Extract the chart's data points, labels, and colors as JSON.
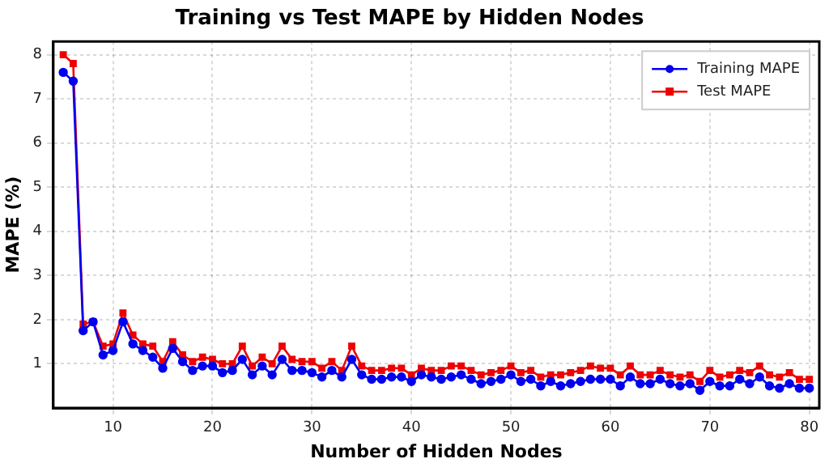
{
  "chart_data": {
    "type": "line",
    "title": "Training vs Test MAPE by Hidden Nodes",
    "xlabel": "Number of Hidden Nodes",
    "ylabel": "MAPE (%)",
    "x": [
      5,
      6,
      7,
      8,
      9,
      10,
      11,
      12,
      13,
      14,
      15,
      16,
      17,
      18,
      19,
      20,
      21,
      22,
      23,
      24,
      25,
      26,
      27,
      28,
      29,
      30,
      31,
      32,
      33,
      34,
      35,
      36,
      37,
      38,
      39,
      40,
      41,
      42,
      43,
      44,
      45,
      46,
      47,
      48,
      49,
      50,
      51,
      52,
      53,
      54,
      55,
      56,
      57,
      58,
      59,
      60,
      61,
      62,
      63,
      64,
      65,
      66,
      67,
      68,
      69,
      70,
      71,
      72,
      73,
      74,
      75,
      76,
      77,
      78,
      79,
      80
    ],
    "series": [
      {
        "name": "Training MAPE",
        "color": "#0000ee",
        "marker": "circle",
        "values": [
          7.6,
          7.4,
          1.75,
          1.95,
          1.2,
          1.3,
          1.95,
          1.45,
          1.3,
          1.15,
          0.9,
          1.35,
          1.05,
          0.85,
          0.95,
          0.95,
          0.8,
          0.85,
          1.1,
          0.75,
          0.95,
          0.75,
          1.1,
          0.85,
          0.85,
          0.8,
          0.7,
          0.85,
          0.7,
          1.1,
          0.75,
          0.65,
          0.65,
          0.7,
          0.7,
          0.6,
          0.75,
          0.7,
          0.65,
          0.7,
          0.75,
          0.65,
          0.55,
          0.6,
          0.65,
          0.75,
          0.6,
          0.65,
          0.5,
          0.6,
          0.5,
          0.55,
          0.6,
          0.65,
          0.65,
          0.65,
          0.5,
          0.7,
          0.55,
          0.55,
          0.65,
          0.55,
          0.5,
          0.55,
          0.4,
          0.6,
          0.5,
          0.5,
          0.65,
          0.55,
          0.7,
          0.5,
          0.45,
          0.55,
          0.45,
          0.45
        ]
      },
      {
        "name": "Test MAPE",
        "color": "#ee0000",
        "marker": "square",
        "values": [
          8.0,
          7.8,
          1.9,
          1.95,
          1.4,
          1.45,
          2.15,
          1.65,
          1.45,
          1.4,
          1.05,
          1.5,
          1.2,
          1.05,
          1.15,
          1.1,
          1.0,
          1.0,
          1.4,
          0.95,
          1.15,
          1.0,
          1.4,
          1.1,
          1.05,
          1.05,
          0.9,
          1.05,
          0.85,
          1.4,
          0.95,
          0.85,
          0.85,
          0.9,
          0.9,
          0.75,
          0.9,
          0.85,
          0.85,
          0.95,
          0.95,
          0.85,
          0.75,
          0.8,
          0.85,
          0.95,
          0.8,
          0.85,
          0.7,
          0.75,
          0.75,
          0.8,
          0.85,
          0.95,
          0.9,
          0.9,
          0.75,
          0.95,
          0.75,
          0.75,
          0.85,
          0.75,
          0.7,
          0.75,
          0.6,
          0.85,
          0.7,
          0.75,
          0.85,
          0.8,
          0.95,
          0.75,
          0.7,
          0.8,
          0.65,
          0.65
        ]
      }
    ],
    "xlim": [
      4,
      81
    ],
    "xticks": [
      10,
      20,
      30,
      40,
      50,
      60,
      70,
      80
    ],
    "ylim": [
      0,
      8.3
    ],
    "yticks": [
      1,
      2,
      3,
      4,
      5,
      6,
      7,
      8
    ],
    "grid": true,
    "legend": "top right",
    "line_style": "solid"
  }
}
